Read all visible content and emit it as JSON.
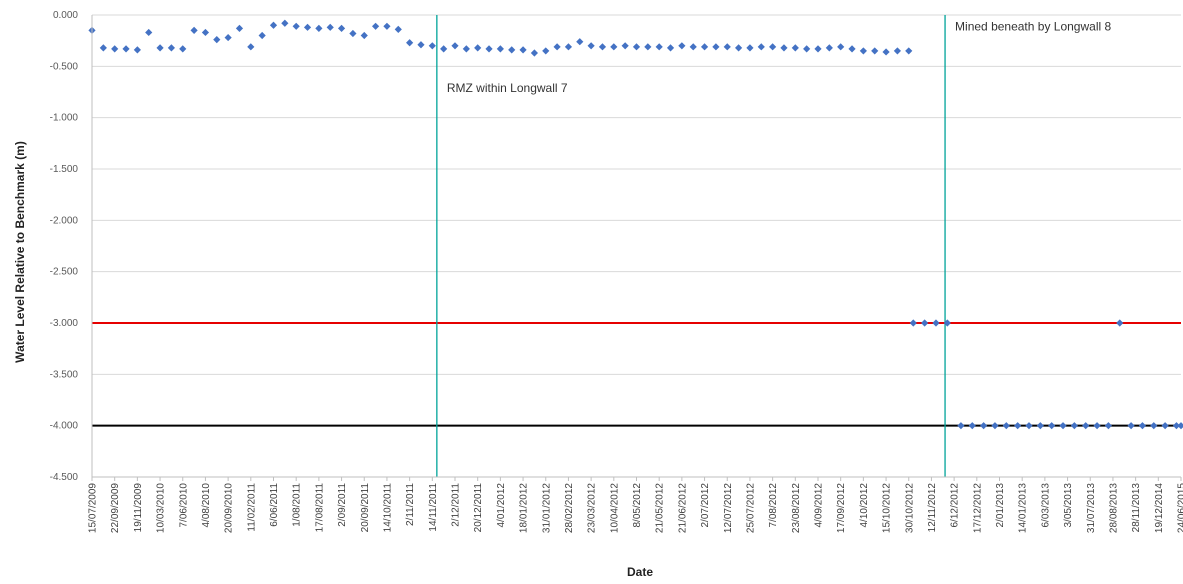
{
  "chart_data": {
    "type": "scatter",
    "title": "",
    "xlabel": "Date",
    "ylabel": "Water Level Relative to Benchmark (m)",
    "ylim": [
      -4.5,
      0
    ],
    "yticks": [
      0,
      -0.5,
      -1,
      -1.5,
      -2,
      -2.5,
      -3,
      -3.5,
      -4,
      -4.5
    ],
    "ytick_labels": [
      "0.000",
      "-0.500",
      "-1.000",
      "-1.500",
      "-2.000",
      "-2.500",
      "-3.000",
      "-3.500",
      "-4.000",
      "-4.500"
    ],
    "grid": "horizontal",
    "x_tick_labels": [
      "15/07/2009",
      "22/09/2009",
      "19/11/2009",
      "10/03/2010",
      "7/06/2010",
      "4/08/2010",
      "20/09/2010",
      "11/02/2011",
      "6/06/2011",
      "1/08/2011",
      "17/08/2011",
      "2/09/2011",
      "20/09/2011",
      "14/10/2011",
      "2/11/2011",
      "14/11/2011",
      "2/12/2011",
      "20/12/2011",
      "4/01/2012",
      "18/01/2012",
      "31/01/2012",
      "28/02/2012",
      "23/03/2012",
      "10/04/2012",
      "8/05/2012",
      "21/05/2012",
      "21/06/2012",
      "2/07/2012",
      "12/07/2012",
      "25/07/2012",
      "7/08/2012",
      "23/08/2012",
      "4/09/2012",
      "17/09/2012",
      "4/10/2012",
      "15/10/2012",
      "30/10/2012",
      "12/11/2012",
      "6/12/2012",
      "17/12/2012",
      "2/01/2013",
      "14/01/2013",
      "6/03/2013",
      "3/05/2013",
      "31/07/2013",
      "28/08/2013",
      "28/11/2013",
      "19/12/2014",
      "24/06/2015"
    ],
    "series": [
      {
        "name": "",
        "color": "#4472c4",
        "points": [
          [
            0,
            -0.15
          ],
          [
            0.5,
            -0.32
          ],
          [
            1,
            -0.33
          ],
          [
            1.5,
            -0.33
          ],
          [
            2,
            -0.34
          ],
          [
            2.5,
            -0.17
          ],
          [
            3,
            -0.32
          ],
          [
            3.5,
            -0.32
          ],
          [
            4,
            -0.33
          ],
          [
            4.5,
            -0.15
          ],
          [
            5,
            -0.17
          ],
          [
            5.5,
            -0.24
          ],
          [
            6,
            -0.22
          ],
          [
            6.5,
            -0.13
          ],
          [
            7,
            -0.31
          ],
          [
            7.5,
            -0.2
          ],
          [
            8,
            -0.1
          ],
          [
            8.5,
            -0.08
          ],
          [
            9,
            -0.11
          ],
          [
            9.5,
            -0.12
          ],
          [
            10,
            -0.13
          ],
          [
            10.5,
            -0.12
          ],
          [
            11,
            -0.13
          ],
          [
            11.5,
            -0.18
          ],
          [
            12,
            -0.2
          ],
          [
            12.5,
            -0.11
          ],
          [
            13,
            -0.11
          ],
          [
            13.5,
            -0.14
          ],
          [
            14,
            -0.27
          ],
          [
            14.5,
            -0.29
          ],
          [
            15,
            -0.3
          ],
          [
            15.5,
            -0.33
          ],
          [
            16,
            -0.3
          ],
          [
            16.5,
            -0.33
          ],
          [
            17,
            -0.32
          ],
          [
            17.5,
            -0.33
          ],
          [
            18,
            -0.33
          ],
          [
            18.5,
            -0.34
          ],
          [
            19,
            -0.34
          ],
          [
            19.5,
            -0.37
          ],
          [
            20,
            -0.35
          ],
          [
            20.5,
            -0.31
          ],
          [
            21,
            -0.31
          ],
          [
            21.5,
            -0.26
          ],
          [
            22,
            -0.3
          ],
          [
            22.5,
            -0.31
          ],
          [
            23,
            -0.31
          ],
          [
            23.5,
            -0.3
          ],
          [
            24,
            -0.31
          ],
          [
            24.5,
            -0.31
          ],
          [
            25,
            -0.31
          ],
          [
            25.5,
            -0.32
          ],
          [
            26,
            -0.3
          ],
          [
            26.5,
            -0.31
          ],
          [
            27,
            -0.31
          ],
          [
            27.5,
            -0.31
          ],
          [
            28,
            -0.31
          ],
          [
            28.5,
            -0.32
          ],
          [
            29,
            -0.32
          ],
          [
            29.5,
            -0.31
          ],
          [
            30,
            -0.31
          ],
          [
            30.5,
            -0.32
          ],
          [
            31,
            -0.32
          ],
          [
            31.5,
            -0.33
          ],
          [
            32,
            -0.33
          ],
          [
            32.5,
            -0.32
          ],
          [
            33,
            -0.31
          ],
          [
            33.5,
            -0.33
          ],
          [
            34,
            -0.35
          ],
          [
            34.5,
            -0.35
          ],
          [
            35,
            -0.36
          ],
          [
            35.5,
            -0.35
          ],
          [
            36,
            -0.35
          ],
          [
            36.2,
            -3.0
          ],
          [
            36.7,
            -3.0
          ],
          [
            37.2,
            -3.0
          ],
          [
            37.7,
            -3.0
          ],
          [
            38.3,
            -4.0
          ],
          [
            38.8,
            -4.0
          ],
          [
            39.3,
            -4.0
          ],
          [
            39.8,
            -4.0
          ],
          [
            40.3,
            -4.0
          ],
          [
            40.8,
            -4.0
          ],
          [
            41.3,
            -4.0
          ],
          [
            41.8,
            -4.0
          ],
          [
            42.3,
            -4.0
          ],
          [
            42.8,
            -4.0
          ],
          [
            43.3,
            -4.0
          ],
          [
            43.8,
            -4.0
          ],
          [
            44.3,
            -4.0
          ],
          [
            44.8,
            -4.0
          ],
          [
            45.3,
            -3.0
          ],
          [
            45.8,
            -4.0
          ],
          [
            46.3,
            -4.0
          ],
          [
            46.8,
            -4.0
          ],
          [
            47.3,
            -4.0
          ],
          [
            47.8,
            -4.0
          ],
          [
            48,
            -4.0
          ]
        ]
      }
    ],
    "reference_lines": [
      {
        "y": -3.0,
        "color": "#e60000",
        "label": ""
      },
      {
        "y": -4.0,
        "color": "#000000",
        "label": ""
      }
    ],
    "vertical_markers": [
      {
        "x": 15.2,
        "color": "#00a39a",
        "label": "RMZ within Longwall 7"
      },
      {
        "x": 37.6,
        "color": "#00a39a",
        "label": "Mined beneath by Longwall 8"
      }
    ]
  }
}
